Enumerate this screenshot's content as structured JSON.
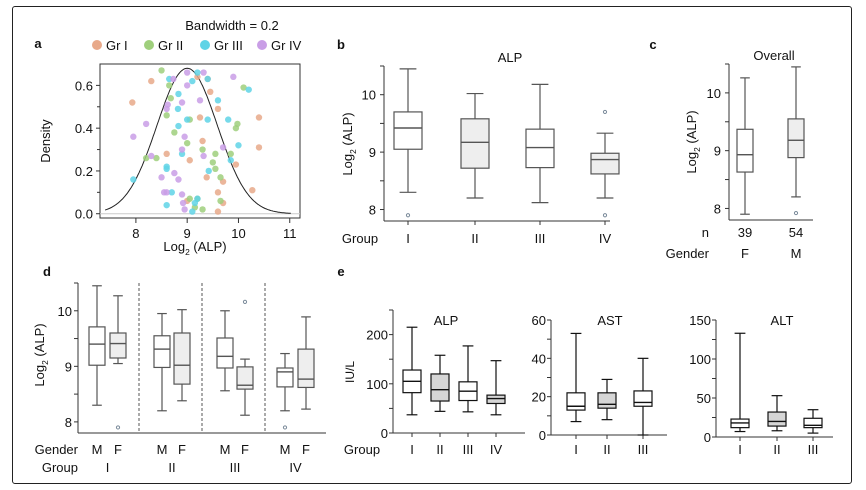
{
  "chart_data": [
    {
      "panel": "a",
      "type": "scatter",
      "title": "Bandwidth = 0.2",
      "xlabel": "Log2 (ALP)",
      "ylabel": "Density",
      "xlim": [
        7.3,
        11.2
      ],
      "ylim": [
        -0.02,
        0.7
      ],
      "xticks": [
        "8",
        "9",
        "10",
        "11"
      ],
      "yticks": [
        "0.0",
        "0.2",
        "0.4",
        "0.6"
      ],
      "legend_position": "top",
      "legend": [
        {
          "name": "Gr I",
          "color": "#e8a98a"
        },
        {
          "name": "Gr II",
          "color": "#9fcf7c"
        },
        {
          "name": "Gr III",
          "color": "#5fd3e6"
        },
        {
          "name": "Gr IV",
          "color": "#c99ee6"
        }
      ],
      "density_curve": {
        "mean": 9.0,
        "sd": 0.59,
        "peak": 0.68
      },
      "series": [
        {
          "name": "Gr I",
          "points": [
            [
              7.93,
              0.52
            ],
            [
              8.3,
              0.62
            ],
            [
              9.2,
              0.64
            ],
            [
              9.45,
              0.57
            ],
            [
              9.6,
              0.49
            ],
            [
              10.4,
              0.45
            ],
            [
              9.25,
              0.45
            ],
            [
              9.3,
              0.34
            ],
            [
              9.05,
              0.25
            ],
            [
              8.6,
              0.28
            ],
            [
              9.38,
              0.17
            ],
            [
              9.6,
              0.1
            ],
            [
              9.7,
              0.15
            ],
            [
              9.95,
              0.23
            ],
            [
              10.4,
              0.31
            ],
            [
              10.27,
              0.11
            ],
            [
              9.6,
              0.01
            ],
            [
              9.7,
              0.05
            ],
            [
              9.0,
              0.06
            ],
            [
              9.4,
              0.63
            ]
          ]
        },
        {
          "name": "Gr II",
          "points": [
            [
              8.5,
              0.67
            ],
            [
              8.65,
              0.6
            ],
            [
              8.68,
              0.54
            ],
            [
              8.6,
              0.46
            ],
            [
              8.75,
              0.38
            ],
            [
              9.05,
              0.44
            ],
            [
              9.0,
              0.33
            ],
            [
              9.3,
              0.3
            ],
            [
              9.5,
              0.24
            ],
            [
              9.55,
              0.28
            ],
            [
              9.55,
              0.21
            ],
            [
              9.65,
              0.17
            ],
            [
              9.95,
              0.4
            ],
            [
              9.98,
              0.42
            ],
            [
              10.1,
              0.59
            ],
            [
              9.85,
              0.28
            ],
            [
              8.2,
              0.26
            ],
            [
              8.4,
              0.26
            ],
            [
              9.05,
              0.07
            ],
            [
              9.15,
              0.03
            ],
            [
              9.3,
              0.02
            ],
            [
              9.65,
              0.06
            ],
            [
              9.2,
              0.07
            ]
          ]
        },
        {
          "name": "Gr III",
          "points": [
            [
              7.95,
              0.16
            ],
            [
              8.65,
              0.63
            ],
            [
              8.83,
              0.56
            ],
            [
              8.82,
              0.49
            ],
            [
              8.83,
              0.41
            ],
            [
              8.9,
              0.28
            ],
            [
              8.6,
              0.22
            ],
            [
              8.6,
              0.21
            ],
            [
              8.7,
              0.1
            ],
            [
              8.6,
              0.04
            ],
            [
              9.0,
              0.44
            ],
            [
              9.1,
              0.62
            ],
            [
              9.2,
              0.66
            ],
            [
              9.4,
              0.44
            ],
            [
              9.42,
              0.2
            ],
            [
              9.6,
              0.53
            ],
            [
              9.8,
              0.44
            ],
            [
              10.0,
              0.32
            ],
            [
              9.85,
              0.25
            ],
            [
              10.2,
              0.58
            ],
            [
              9.15,
              0.05
            ],
            [
              9.2,
              0.07
            ],
            [
              9.1,
              0.01
            ],
            [
              9.4,
              0.63
            ]
          ]
        },
        {
          "name": "Gr IV",
          "points": [
            [
              7.95,
              0.36
            ],
            [
              8.2,
              0.42
            ],
            [
              8.3,
              0.27
            ],
            [
              8.5,
              0.17
            ],
            [
              8.55,
              0.1
            ],
            [
              8.6,
              0.49
            ],
            [
              8.62,
              0.51
            ],
            [
              8.73,
              0.63
            ],
            [
              8.75,
              0.19
            ],
            [
              8.83,
              0.16
            ],
            [
              8.9,
              0.3
            ],
            [
              8.9,
              0.52
            ],
            [
              8.95,
              0.36
            ],
            [
              9.0,
              0.66
            ],
            [
              9.0,
              0.6
            ],
            [
              9.25,
              0.53
            ],
            [
              9.32,
              0.66
            ],
            [
              9.32,
              0.27
            ],
            [
              9.7,
              0.31
            ],
            [
              9.9,
              0.64
            ],
            [
              8.9,
              0.09
            ],
            [
              8.92,
              0.05
            ],
            [
              8.95,
              0.02
            ],
            [
              8.6,
              0.1
            ]
          ]
        }
      ]
    },
    {
      "panel": "b",
      "type": "box",
      "title": "ALP",
      "ylabel": "Log2 (ALP)",
      "xlabel": "Group",
      "ylim": [
        7.8,
        10.5
      ],
      "yticks": [
        "8",
        "9",
        "10"
      ],
      "categories": [
        "I",
        "II",
        "III",
        "IV"
      ],
      "boxes": [
        {
          "min": 8.3,
          "q1": 9.05,
          "median": 9.42,
          "q3": 9.7,
          "max": 10.45,
          "outliers": [
            7.9
          ],
          "fill": "#ffffff"
        },
        {
          "min": 8.2,
          "q1": 8.72,
          "median": 9.17,
          "q3": 9.58,
          "max": 10.02,
          "outliers": [],
          "fill": "#eeeeee"
        },
        {
          "min": 8.12,
          "q1": 8.73,
          "median": 9.08,
          "q3": 9.4,
          "max": 10.18,
          "outliers": [],
          "fill": "#ffffff"
        },
        {
          "min": 8.2,
          "q1": 8.62,
          "median": 8.87,
          "q3": 8.98,
          "max": 9.33,
          "outliers": [
            9.7,
            7.9
          ],
          "fill": "#eeeeee"
        }
      ]
    },
    {
      "panel": "c",
      "type": "box",
      "title": "Overall",
      "ylabel": "Log2 (ALP)",
      "ylim": [
        7.8,
        10.5
      ],
      "yticks": [
        "8",
        "9",
        "10"
      ],
      "row_labels": [
        "n",
        "Gender"
      ],
      "categories": [
        "F",
        "M"
      ],
      "n": [
        "39",
        "54"
      ],
      "boxes": [
        {
          "min": 7.9,
          "q1": 8.63,
          "median": 8.93,
          "q3": 9.37,
          "max": 10.26,
          "outliers": [],
          "fill": "#ffffff"
        },
        {
          "min": 8.2,
          "q1": 8.88,
          "median": 9.18,
          "q3": 9.55,
          "max": 10.45,
          "outliers": [
            7.92
          ],
          "fill": "#eeeeee"
        }
      ]
    },
    {
      "panel": "d",
      "type": "box",
      "ylabel": "Log2 (ALP)",
      "ylim": [
        7.8,
        10.5
      ],
      "yticks": [
        "8",
        "9",
        "10"
      ],
      "row_labels": [
        "Gender",
        "Group"
      ],
      "groups": [
        "I",
        "II",
        "III",
        "IV"
      ],
      "genders": [
        "M",
        "F"
      ],
      "boxes": [
        {
          "group": "I",
          "gender": "M",
          "min": 8.3,
          "q1": 9.02,
          "median": 9.4,
          "q3": 9.71,
          "max": 10.45,
          "outliers": [],
          "fill": "#ffffff"
        },
        {
          "group": "I",
          "gender": "F",
          "min": 9.05,
          "q1": 9.15,
          "median": 9.41,
          "q3": 9.6,
          "max": 10.27,
          "outliers": [
            7.9
          ],
          "fill": "#eeeeee"
        },
        {
          "group": "II",
          "gender": "M",
          "min": 8.2,
          "q1": 8.98,
          "median": 9.31,
          "q3": 9.55,
          "max": 9.95,
          "outliers": [],
          "fill": "#ffffff"
        },
        {
          "group": "II",
          "gender": "F",
          "min": 8.38,
          "q1": 8.68,
          "median": 9.02,
          "q3": 9.6,
          "max": 10.02,
          "outliers": [],
          "fill": "#eeeeee"
        },
        {
          "group": "III",
          "gender": "M",
          "min": 8.56,
          "q1": 8.97,
          "median": 9.18,
          "q3": 9.51,
          "max": 10.0,
          "outliers": [],
          "fill": "#ffffff"
        },
        {
          "group": "III",
          "gender": "F",
          "min": 8.12,
          "q1": 8.59,
          "median": 8.66,
          "q3": 8.99,
          "max": 9.13,
          "outliers": [
            10.16
          ],
          "fill": "#eeeeee"
        },
        {
          "group": "IV",
          "gender": "M",
          "min": 8.2,
          "q1": 8.63,
          "median": 8.9,
          "q3": 8.97,
          "max": 9.23,
          "outliers": [
            7.9
          ],
          "fill": "#ffffff"
        },
        {
          "group": "IV",
          "gender": "F",
          "min": 8.23,
          "q1": 8.62,
          "median": 8.77,
          "q3": 9.31,
          "max": 9.89,
          "outliers": [],
          "fill": "#eeeeee"
        }
      ]
    },
    {
      "panel": "e",
      "type": "box",
      "title": "ALP",
      "ylabel": "IU/L",
      "xlabel": "Group",
      "ylim": [
        0,
        250
      ],
      "yticks": [
        "0",
        "100",
        "200"
      ],
      "categories": [
        "I",
        "II",
        "III",
        "IV"
      ],
      "boxes": [
        {
          "min": 37,
          "q1": 82,
          "median": 105,
          "q3": 128,
          "max": 215,
          "fill": "#ffffff"
        },
        {
          "min": 44,
          "q1": 65,
          "median": 88,
          "q3": 120,
          "max": 158,
          "fill": "#d6d6d6"
        },
        {
          "min": 43,
          "q1": 66,
          "median": 85,
          "q3": 104,
          "max": 177,
          "fill": "#ffffff"
        },
        {
          "min": 37,
          "q1": 60,
          "median": 70,
          "q3": 77,
          "max": 147,
          "fill": "#d6d6d6"
        }
      ]
    },
    {
      "panel": "e",
      "type": "box",
      "title": "AST",
      "ylim": [
        0,
        60
      ],
      "yticks": [
        "0",
        "20",
        "40",
        "60"
      ],
      "categories": [
        "I",
        "II",
        "III"
      ],
      "boxes": [
        {
          "min": 7,
          "q1": 13,
          "median": 15,
          "q3": 22,
          "max": 53,
          "fill": "#ffffff"
        },
        {
          "min": 8,
          "q1": 14,
          "median": 16,
          "q3": 22,
          "max": 29,
          "fill": "#d6d6d6"
        },
        {
          "min": 0,
          "q1": 15,
          "median": 17,
          "q3": 23,
          "max": 40,
          "fill": "#ffffff"
        }
      ]
    },
    {
      "panel": "e",
      "type": "box",
      "title": "ALT",
      "ylim": [
        0,
        150
      ],
      "yticks": [
        "0",
        "50",
        "100",
        "150"
      ],
      "categories": [
        "I",
        "II",
        "III"
      ],
      "boxes": [
        {
          "min": 7,
          "q1": 12,
          "median": 18,
          "q3": 23,
          "max": 133,
          "fill": "#ffffff"
        },
        {
          "min": 8,
          "q1": 14,
          "median": 20,
          "q3": 32,
          "max": 53,
          "fill": "#d6d6d6"
        },
        {
          "min": 5,
          "q1": 12,
          "median": 15,
          "q3": 24,
          "max": 35,
          "fill": "#ffffff"
        }
      ]
    }
  ],
  "panel_labels": [
    "a",
    "b",
    "c",
    "d",
    "e"
  ],
  "text": {
    "bandwidth": "Bandwidth = 0.2",
    "density": "Density",
    "log2": "Log",
    "sub2": "2",
    "alp_paren": " (ALP)",
    "group": "Group",
    "gender": "Gender",
    "n": "n",
    "iul": "IU/L"
  }
}
